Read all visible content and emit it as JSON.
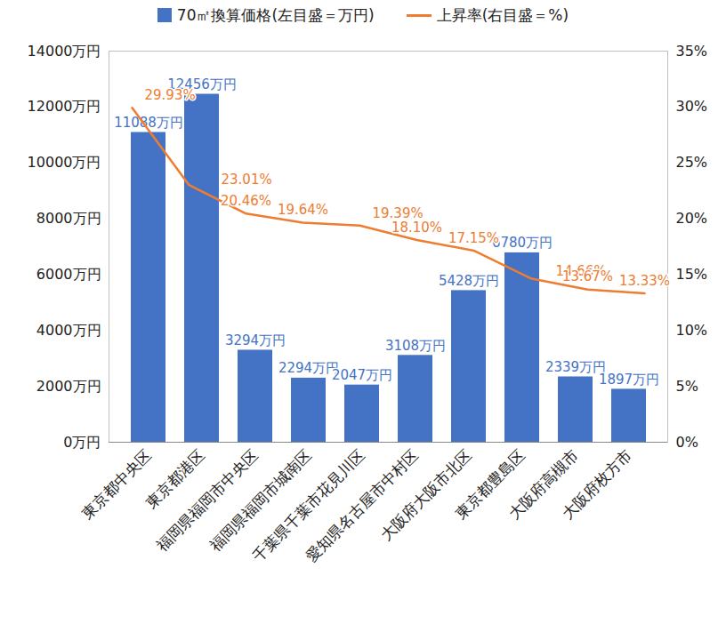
{
  "chart_data": {
    "type": "bar",
    "categories": [
      "東京都中央区",
      "東京都港区",
      "福岡県福岡市中央区",
      "福岡県福岡市城南区",
      "千葉県千葉市花見川区",
      "愛知県名古屋市中村区",
      "大阪府大阪市北区",
      "東京都豊島区",
      "大阪府高槻市",
      "大阪府枚方市"
    ],
    "series": [
      {
        "name": "70㎡換算価格(左目盛＝万円)",
        "type": "bar",
        "color": "#4472c4",
        "values": [
          11088,
          12456,
          3294,
          2294,
          2047,
          3108,
          5428,
          6780,
          2339,
          1897
        ],
        "value_labels": [
          "11088万円",
          "12456万円",
          "3294万円",
          "2294万円",
          "2047万円",
          "3108万円",
          "5428万円",
          "6780万円",
          "2339万円",
          "1897万円"
        ]
      },
      {
        "name": "上昇率(右目盛＝%)",
        "type": "line",
        "color": "#ed7d31",
        "axis": "y2",
        "values": [
          29.93,
          23.01,
          20.46,
          19.64,
          19.39,
          18.1,
          17.15,
          14.66,
          13.67,
          13.33
        ],
        "value_labels": [
          "29.93%",
          "23.01%",
          "20.46%",
          "19.64%",
          "19.39%",
          "18.10%",
          "17.15%",
          "14.66%",
          "13.67%",
          "13.33%"
        ]
      }
    ],
    "ylim": [
      0,
      14000
    ],
    "yticks": [
      {
        "value": 0,
        "label": "0万円"
      },
      {
        "value": 2000,
        "label": "2000万円"
      },
      {
        "value": 4000,
        "label": "4000万円"
      },
      {
        "value": 6000,
        "label": "6000万円"
      },
      {
        "value": 8000,
        "label": "8000万円"
      },
      {
        "value": 10000,
        "label": "10000万円"
      },
      {
        "value": 12000,
        "label": "12000万円"
      },
      {
        "value": 14000,
        "label": "14000万円"
      }
    ],
    "y2lim": [
      0,
      35
    ],
    "y2ticks": [
      {
        "value": 0,
        "label": "0%"
      },
      {
        "value": 5,
        "label": "5%"
      },
      {
        "value": 10,
        "label": "10%"
      },
      {
        "value": 15,
        "label": "15%"
      },
      {
        "value": 20,
        "label": "20%"
      },
      {
        "value": 25,
        "label": "25%"
      },
      {
        "value": 30,
        "label": "30%"
      },
      {
        "value": 35,
        "label": "35%"
      }
    ],
    "data_labels": true,
    "legend": "top",
    "grid": false
  }
}
